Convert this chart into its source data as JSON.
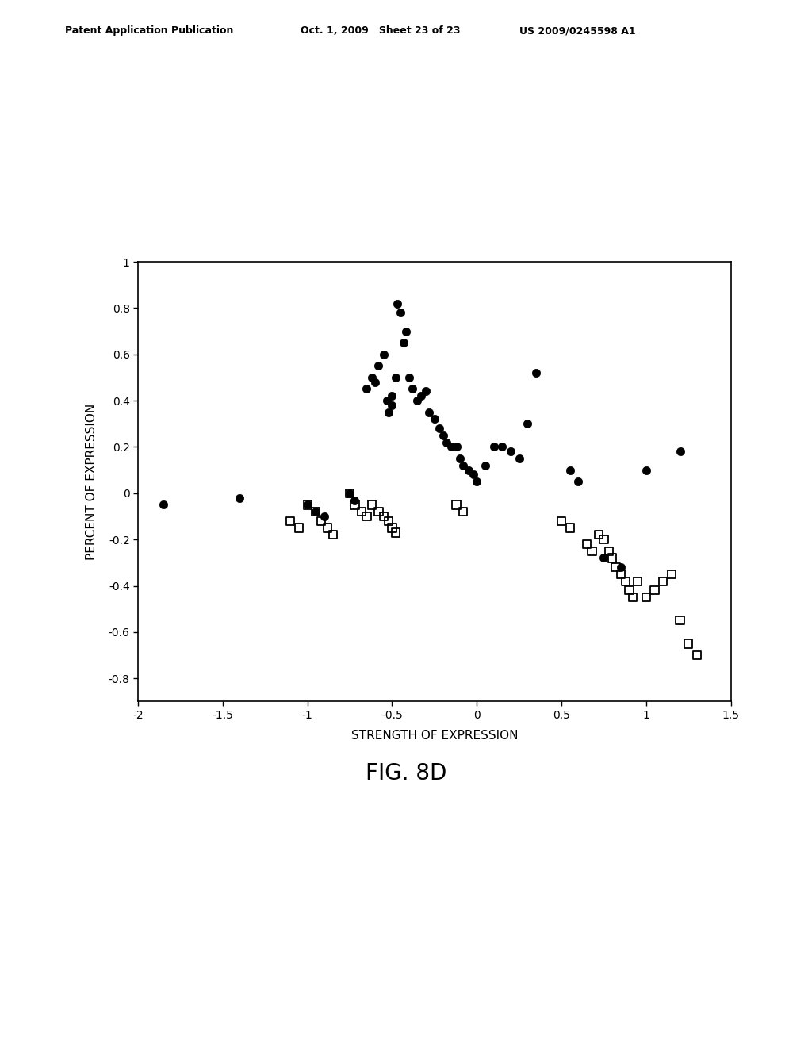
{
  "circles_x": [
    -1.85,
    -1.4,
    -1.0,
    -0.95,
    -0.9,
    -0.75,
    -0.72,
    -0.65,
    -0.62,
    -0.6,
    -0.58,
    -0.55,
    -0.53,
    -0.52,
    -0.5,
    -0.5,
    -0.48,
    -0.47,
    -0.45,
    -0.43,
    -0.42,
    -0.4,
    -0.38,
    -0.35,
    -0.33,
    -0.3,
    -0.28,
    -0.25,
    -0.22,
    -0.2,
    -0.18,
    -0.15,
    -0.12,
    -0.1,
    -0.08,
    -0.05,
    -0.02,
    0.0,
    0.05,
    0.1,
    0.15,
    0.2,
    0.25,
    0.3,
    0.35,
    0.55,
    0.6,
    0.75,
    0.85,
    1.0,
    1.2
  ],
  "circles_y": [
    -0.05,
    -0.02,
    -0.05,
    -0.08,
    -0.1,
    0.0,
    -0.03,
    0.45,
    0.5,
    0.48,
    0.55,
    0.6,
    0.4,
    0.35,
    0.38,
    0.42,
    0.5,
    0.82,
    0.78,
    0.65,
    0.7,
    0.5,
    0.45,
    0.4,
    0.42,
    0.44,
    0.35,
    0.32,
    0.28,
    0.25,
    0.22,
    0.2,
    0.2,
    0.15,
    0.12,
    0.1,
    0.08,
    0.05,
    0.12,
    0.2,
    0.2,
    0.18,
    0.15,
    0.3,
    0.52,
    0.1,
    0.05,
    -0.28,
    -0.32,
    0.1,
    0.18
  ],
  "squares_x": [
    -1.1,
    -1.05,
    -1.0,
    -0.95,
    -0.92,
    -0.88,
    -0.85,
    -0.75,
    -0.72,
    -0.68,
    -0.65,
    -0.62,
    -0.58,
    -0.55,
    -0.52,
    -0.5,
    -0.48,
    -0.12,
    -0.08,
    0.5,
    0.55,
    0.65,
    0.68,
    0.72,
    0.75,
    0.78,
    0.8,
    0.82,
    0.85,
    0.88,
    0.9,
    0.92,
    0.95,
    1.0,
    1.05,
    1.1,
    1.15,
    1.2,
    1.25,
    1.3
  ],
  "squares_y": [
    -0.12,
    -0.15,
    -0.05,
    -0.08,
    -0.12,
    -0.15,
    -0.18,
    0.0,
    -0.05,
    -0.08,
    -0.1,
    -0.05,
    -0.08,
    -0.1,
    -0.12,
    -0.15,
    -0.17,
    -0.05,
    -0.08,
    -0.12,
    -0.15,
    -0.22,
    -0.25,
    -0.18,
    -0.2,
    -0.25,
    -0.28,
    -0.32,
    -0.35,
    -0.38,
    -0.42,
    -0.45,
    -0.38,
    -0.45,
    -0.42,
    -0.38,
    -0.35,
    -0.55,
    -0.65,
    -0.7
  ],
  "xlim": [
    -2.0,
    1.5
  ],
  "ylim": [
    -0.9,
    1.0
  ],
  "xticks": [
    -2.0,
    -1.5,
    -1.0,
    -0.5,
    0.0,
    0.5,
    1.0,
    1.5
  ],
  "xticklabels": [
    "-2",
    "-1.5",
    "-1",
    "-0.5",
    "0",
    "0.5",
    "1",
    "1.5"
  ],
  "yticks": [
    -0.8,
    -0.6,
    -0.4,
    -0.2,
    0.0,
    0.2,
    0.4,
    0.6,
    0.8,
    1.0
  ],
  "yticklabels": [
    "-0.8",
    "-0.6",
    "-0.4",
    "-0.2",
    "0",
    "0.2",
    "0.4",
    "0.6",
    "0.8",
    "1"
  ],
  "xlabel": "STRENGTH OF EXPRESSION",
  "ylabel": "PERCENT OF EXPRESSION",
  "figure_title": "FIG. 8D",
  "header_left": "Patent Application Publication",
  "header_mid": "Oct. 1, 2009   Sheet 23 of 23",
  "header_right": "US 2009/0245598 A1",
  "background_color": "#ffffff",
  "marker_color": "#000000"
}
